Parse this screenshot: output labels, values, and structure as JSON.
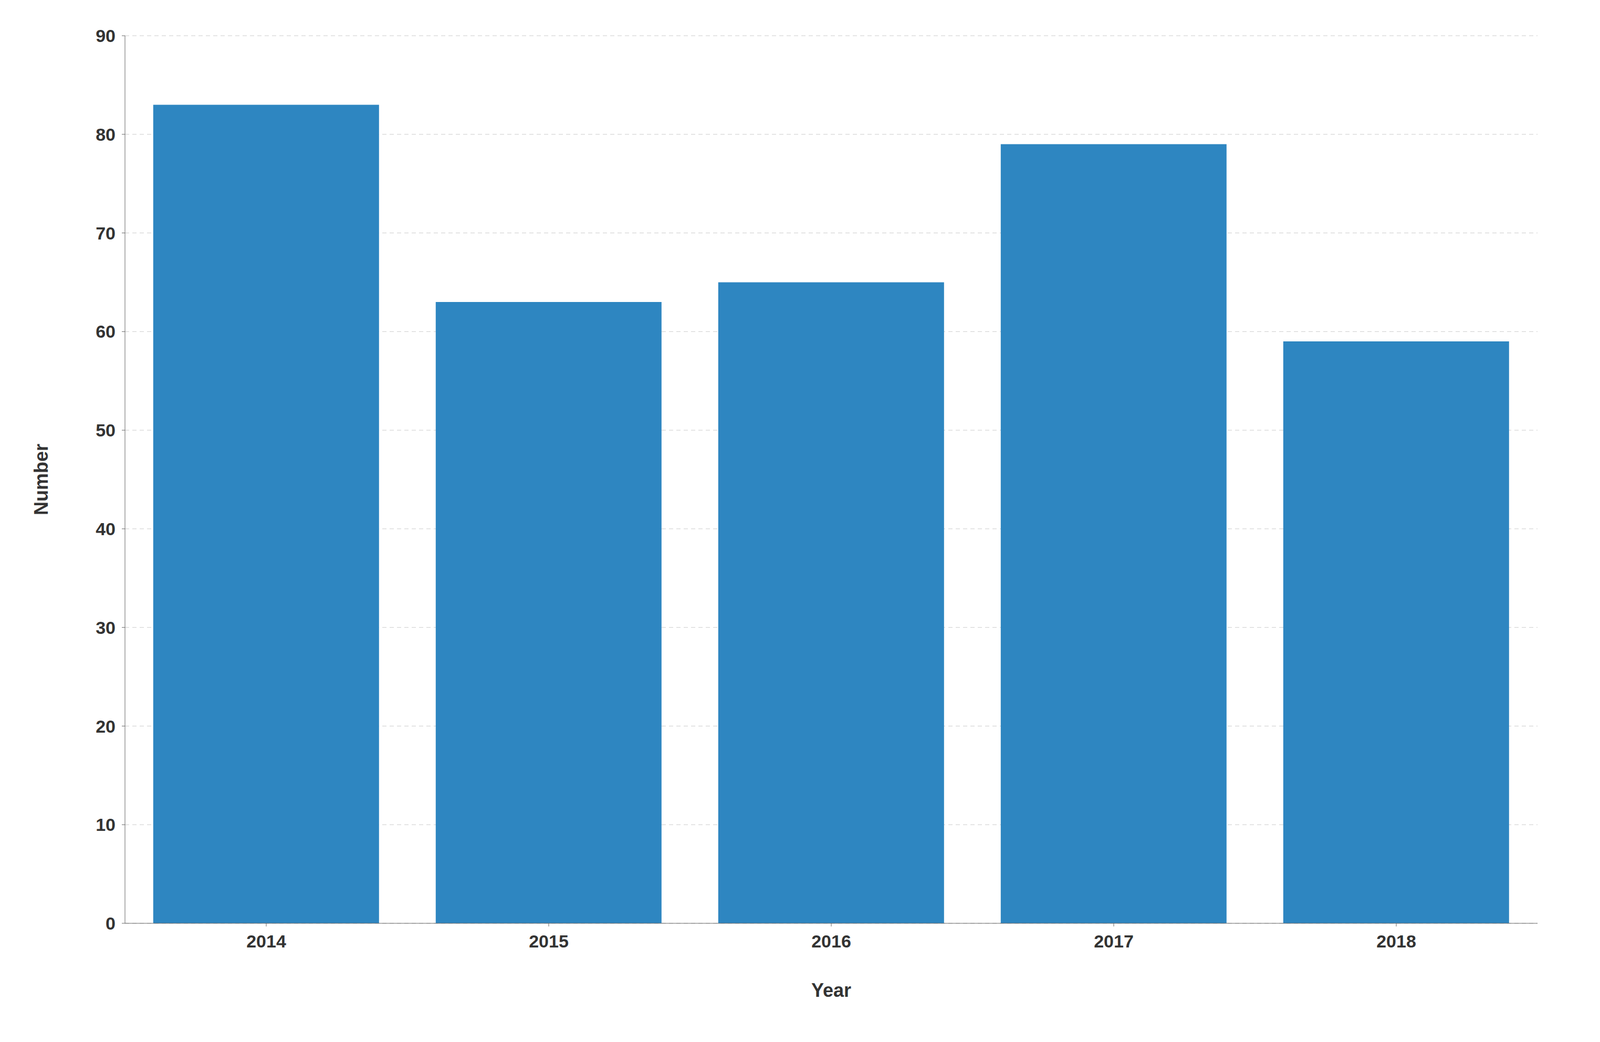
{
  "chart_data": {
    "type": "bar",
    "categories": [
      "2014",
      "2015",
      "2016",
      "2017",
      "2018"
    ],
    "values": [
      83,
      63,
      65,
      79,
      59
    ],
    "color": "#2e86c1",
    "xlabel": "Year",
    "ylabel": "Number",
    "ylim": [
      0,
      90
    ],
    "yticks": [
      0,
      10,
      20,
      30,
      40,
      50,
      60,
      70,
      80,
      90
    ],
    "grid": true
  }
}
